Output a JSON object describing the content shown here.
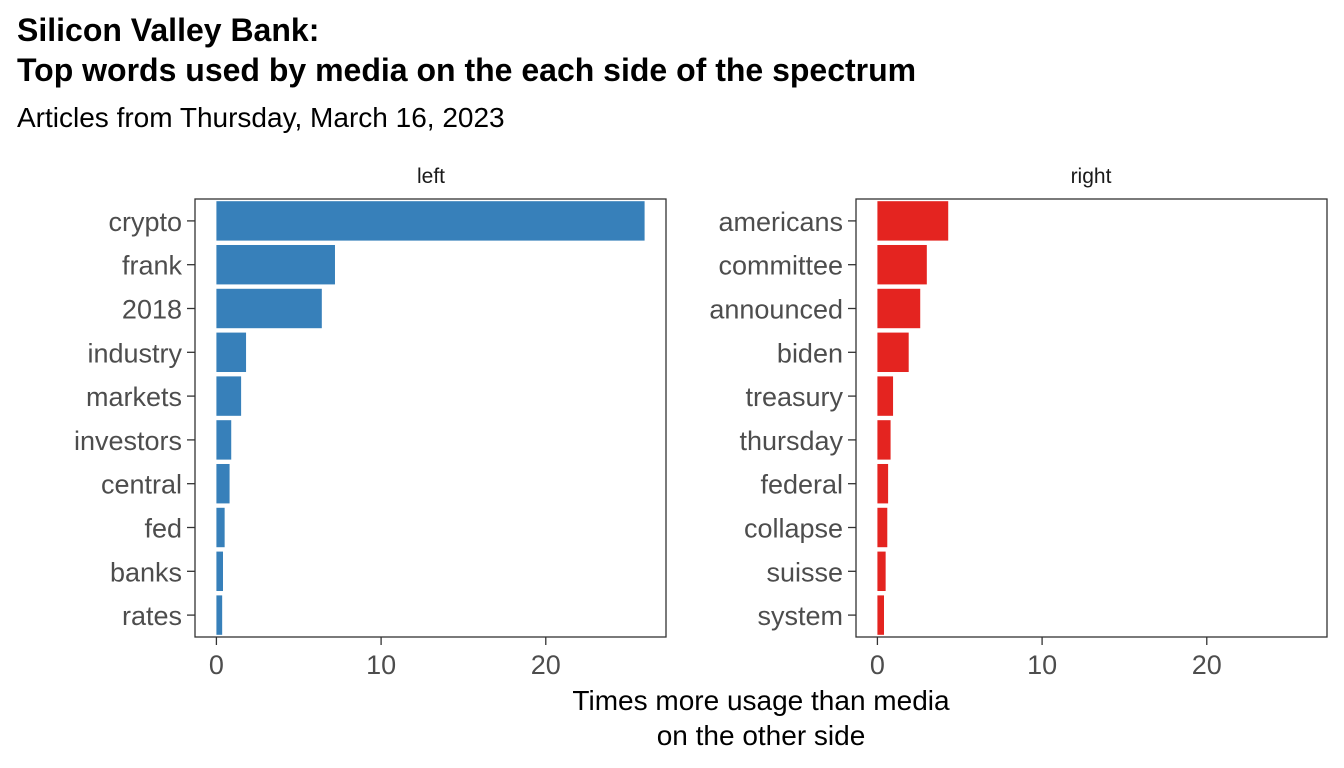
{
  "chart_data": {
    "type": "bar",
    "orientation": "horizontal",
    "title": [
      "Silicon Valley Bank:",
      "Top words used by media on the each side of the spectrum"
    ],
    "subtitle": "Articles from Thursday, March 16, 2023",
    "xlabel": [
      "Times more usage than media",
      "on the other side"
    ],
    "ylabel": "",
    "xlim": [
      -1.3,
      27.3
    ],
    "xticks": [
      0,
      10,
      20
    ],
    "grid": false,
    "legend": "none",
    "panels": [
      {
        "name": "left",
        "color": "#3780BA",
        "categories": [
          "crypto",
          "frank",
          "2018",
          "industry",
          "markets",
          "investors",
          "central",
          "fed",
          "banks",
          "rates"
        ],
        "values": [
          26.0,
          7.2,
          6.4,
          1.8,
          1.5,
          0.9,
          0.8,
          0.5,
          0.4,
          0.35
        ]
      },
      {
        "name": "right",
        "color": "#E42420",
        "categories": [
          "americans",
          "committee",
          "announced",
          "biden",
          "treasury",
          "thursday",
          "federal",
          "collapse",
          "suisse",
          "system"
        ],
        "values": [
          4.3,
          3.0,
          2.6,
          1.9,
          0.95,
          0.8,
          0.65,
          0.6,
          0.5,
          0.4
        ]
      }
    ]
  }
}
